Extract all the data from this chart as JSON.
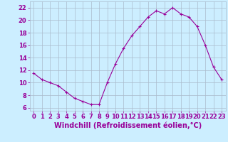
{
  "x": [
    0,
    1,
    2,
    3,
    4,
    5,
    6,
    7,
    8,
    9,
    10,
    11,
    12,
    13,
    14,
    15,
    16,
    17,
    18,
    19,
    20,
    21,
    22,
    23
  ],
  "y": [
    11.5,
    10.5,
    10.0,
    9.5,
    8.5,
    7.5,
    7.0,
    6.5,
    6.5,
    10.0,
    13.0,
    15.5,
    17.5,
    19.0,
    20.5,
    21.5,
    21.0,
    22.0,
    21.0,
    20.5,
    19.0,
    16.0,
    12.5,
    10.5
  ],
  "line_color": "#990099",
  "marker": "+",
  "background_color": "#cceeff",
  "grid_color": "#aabbcc",
  "xlabel": "Windchill (Refroidissement éolien,°C)",
  "xlabel_color": "#990099",
  "xlim": [
    -0.5,
    23.5
  ],
  "ylim": [
    5.5,
    23.0
  ],
  "yticks": [
    6,
    8,
    10,
    12,
    14,
    16,
    18,
    20,
    22
  ],
  "xticks": [
    0,
    1,
    2,
    3,
    4,
    5,
    6,
    7,
    8,
    9,
    10,
    11,
    12,
    13,
    14,
    15,
    16,
    17,
    18,
    19,
    20,
    21,
    22,
    23
  ],
  "tick_color": "#990099",
  "tick_label_fontsize": 6.0,
  "xlabel_fontsize": 7.0,
  "line_width": 0.8,
  "marker_size": 3.5,
  "marker_edge_width": 0.8
}
